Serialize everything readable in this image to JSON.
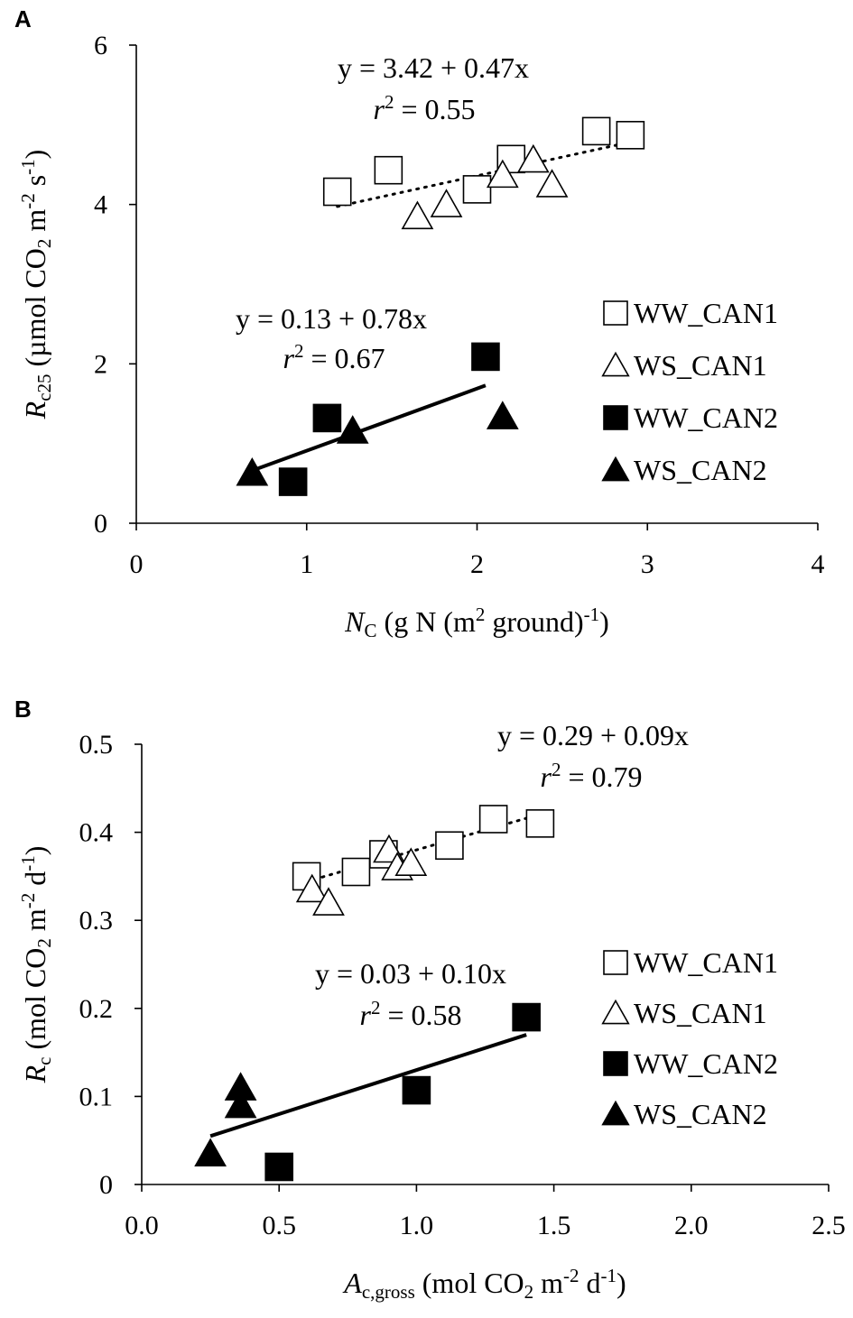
{
  "chart_data": [
    {
      "type": "scatter",
      "panel": "A",
      "xlim": [
        0,
        4
      ],
      "ylim": [
        0,
        6
      ],
      "xticks": [
        "0",
        "1",
        "2",
        "3",
        "4"
      ],
      "yticks": [
        "0",
        "2",
        "4",
        "6"
      ],
      "xlabel": {
        "main": "N",
        "sub": "C",
        "rest": " (g N (m",
        "sup": "2",
        "rest2": " ground)",
        "sup2": "-1",
        "rest3": ")"
      },
      "ylabel": {
        "main": "R",
        "sub": "c25",
        "rest": " (µmol CO",
        "sub2": "2",
        "rest2": " m",
        "sup": "-2",
        "rest3": " s",
        "sup2": "-1",
        "rest4": ")"
      },
      "grid": false,
      "legend_position": "right",
      "series": [
        {
          "name": "WW_CAN1",
          "marker": "open-square",
          "points": [
            [
              1.18,
              4.16
            ],
            [
              1.48,
              4.43
            ],
            [
              2.0,
              4.19
            ],
            [
              2.2,
              4.57
            ],
            [
              2.7,
              4.92
            ],
            [
              2.9,
              4.87
            ]
          ]
        },
        {
          "name": "WS_CAN1",
          "marker": "open-triangle",
          "points": [
            [
              1.65,
              3.85
            ],
            [
              1.82,
              4.0
            ],
            [
              2.15,
              4.37
            ],
            [
              2.33,
              4.56
            ],
            [
              2.44,
              4.25
            ]
          ]
        },
        {
          "name": "WW_CAN2",
          "marker": "filled-square",
          "points": [
            [
              0.92,
              0.52
            ],
            [
              1.12,
              1.32
            ],
            [
              2.05,
              2.09
            ]
          ]
        },
        {
          "name": "WS_CAN2",
          "marker": "filled-triangle",
          "points": [
            [
              0.68,
              0.63
            ],
            [
              1.27,
              1.16
            ],
            [
              2.15,
              1.34
            ]
          ]
        }
      ],
      "fits": [
        {
          "style": "dotted",
          "x_range": [
            1.18,
            2.9
          ],
          "intercept": 3.42,
          "slope": 0.47,
          "equation": "y = 3.42 + 0.47x",
          "r2_label": "r",
          "r2_sup": "2",
          "r2_value": " = 0.55"
        },
        {
          "style": "solid",
          "x_range": [
            0.68,
            2.05
          ],
          "intercept": 0.13,
          "slope": 0.78,
          "equation": "y = 0.13 + 0.78x",
          "r2_label": "r",
          "r2_sup": "2",
          "r2_value": " = 0.67"
        }
      ]
    },
    {
      "type": "scatter",
      "panel": "B",
      "xlim": [
        0,
        2.5
      ],
      "ylim": [
        0,
        0.5
      ],
      "xticks": [
        "0.0",
        "0.5",
        "1.0",
        "1.5",
        "2.0",
        "2.5"
      ],
      "yticks": [
        "0",
        "0.1",
        "0.2",
        "0.3",
        "0.4",
        "0.5"
      ],
      "xlabel": {
        "main": "A",
        "sub": "c,gross",
        "rest": " (mol CO",
        "sub2": "2",
        "rest2": " m",
        "sup": "-2",
        "rest3": " d",
        "sup2": "-1",
        "rest4": ")"
      },
      "ylabel": {
        "main": "R",
        "sub": "c",
        "rest": " (mol CO",
        "sub2": "2",
        "rest2": " m",
        "sup": "-2",
        "rest3": " d",
        "sup2": "-1",
        "rest4": ")"
      },
      "grid": false,
      "legend_position": "right",
      "series": [
        {
          "name": "WW_CAN1",
          "marker": "open-square",
          "points": [
            [
              0.6,
              0.35
            ],
            [
              0.78,
              0.355
            ],
            [
              0.88,
              0.375
            ],
            [
              1.12,
              0.385
            ],
            [
              1.28,
              0.415
            ],
            [
              1.45,
              0.41
            ]
          ]
        },
        {
          "name": "WS_CAN1",
          "marker": "open-triangle",
          "points": [
            [
              0.62,
              0.335
            ],
            [
              0.68,
              0.32
            ],
            [
              0.9,
              0.38
            ],
            [
              0.93,
              0.36
            ],
            [
              0.98,
              0.365
            ]
          ]
        },
        {
          "name": "WW_CAN2",
          "marker": "filled-square",
          "points": [
            [
              0.5,
              0.02
            ],
            [
              1.0,
              0.107
            ],
            [
              1.4,
              0.19
            ]
          ]
        },
        {
          "name": "WS_CAN2",
          "marker": "filled-triangle",
          "points": [
            [
              0.25,
              0.035
            ],
            [
              0.36,
              0.09
            ],
            [
              0.36,
              0.11
            ]
          ]
        }
      ],
      "fits": [
        {
          "style": "dotted",
          "x_range": [
            0.6,
            1.45
          ],
          "intercept": 0.29,
          "slope": 0.09,
          "equation": "y = 0.29 + 0.09x",
          "r2_label": "r",
          "r2_sup": "2",
          "r2_value": " = 0.79"
        },
        {
          "style": "solid",
          "x_range": [
            0.25,
            1.4
          ],
          "intercept": 0.03,
          "slope": 0.1,
          "equation": "y = 0.03 + 0.10x",
          "r2_label": "r",
          "r2_sup": "2",
          "r2_value": " = 0.58"
        }
      ]
    }
  ]
}
